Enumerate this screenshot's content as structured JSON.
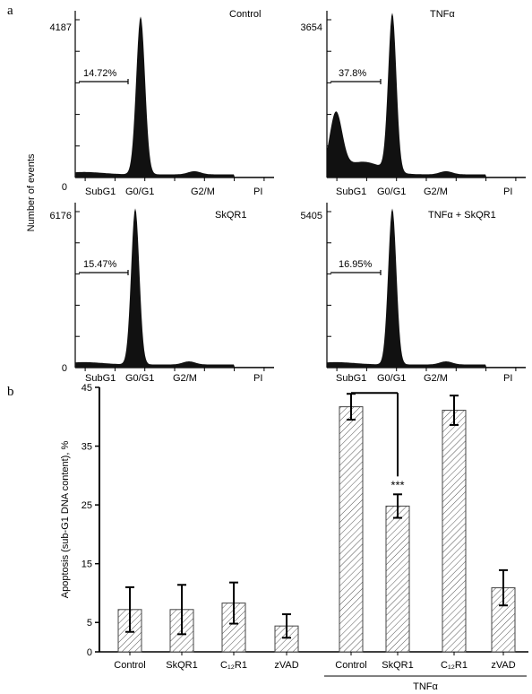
{
  "panel_labels": {
    "a": "a",
    "b": "b"
  },
  "histogram_y_label": "Number of events",
  "chart_data": [
    {
      "type": "histogram",
      "panel": "a",
      "title": "Control",
      "y_max_label": "4187",
      "y_zero_label": "0",
      "bracket_label": "14.72%",
      "x_labels": [
        "SubG1",
        "G0/G1",
        "G2/M",
        "PI"
      ],
      "subg1_peak": 0.03
    },
    {
      "type": "histogram",
      "panel": "a",
      "title": "TNFα",
      "y_max_label": "3654",
      "bracket_label": "37.8%",
      "x_labels": [
        "SubG1",
        "G0/G1",
        "G2/M",
        "PI"
      ],
      "subg1_peak": 0.37
    },
    {
      "type": "histogram",
      "panel": "a",
      "title": "SkQR1",
      "y_max_label": "6176",
      "bracket_label": "15.47%",
      "x_labels": [
        "SubG1",
        "G0/G1",
        "G2/M",
        "PI"
      ],
      "subg1_peak": 0.03
    },
    {
      "type": "histogram",
      "panel": "a",
      "title": "TNFα  + SkQR1",
      "y_max_label": "5405",
      "bracket_label": "16.95%",
      "x_labels": [
        "SubG1",
        "G0/G1",
        "G2/M",
        "PI"
      ],
      "subg1_peak": 0.03
    },
    {
      "type": "bar",
      "panel": "b",
      "ylabel": "Apoptosis (sub-G1 DNA content), %",
      "ylim": [
        0,
        45
      ],
      "yticks": [
        "0",
        "5",
        "15",
        "25",
        "35",
        "45"
      ],
      "categories": [
        "Control",
        "SkQR1",
        "C₁₂R1",
        "zVAD",
        "Control",
        "SkQR1",
        "C₁₂R1",
        "zVAD"
      ],
      "values": [
        7.2,
        7.2,
        8.3,
        4.4,
        41.7,
        24.8,
        41.1,
        10.9
      ],
      "errors": [
        3.8,
        4.2,
        3.5,
        2.0,
        2.2,
        2.0,
        2.5,
        3.0
      ],
      "group_label": "TNFα",
      "group_start": 4,
      "significance": {
        "from": 4,
        "to": 5,
        "label": "***"
      },
      "hatched": true
    }
  ]
}
